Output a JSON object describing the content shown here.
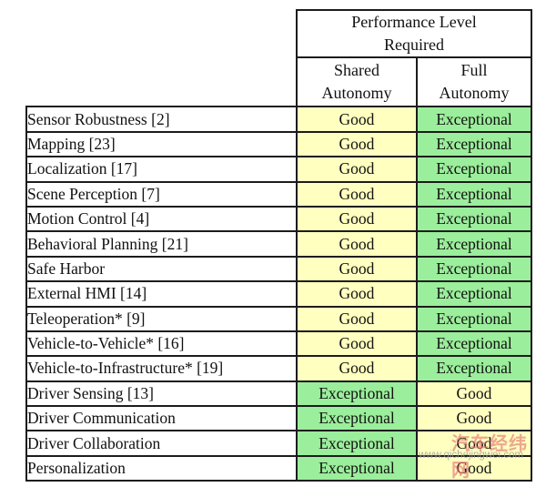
{
  "table": {
    "header": {
      "title_lines": [
        "Performance Level",
        "Required"
      ],
      "columns": [
        {
          "id": "shared",
          "lines": [
            "Shared",
            "Autonomy"
          ]
        },
        {
          "id": "full",
          "lines": [
            "Full",
            "Autonomy"
          ]
        }
      ]
    },
    "value_colors": {
      "Good": "#FFFFC0",
      "Exceptional": "#9BEE9B"
    },
    "border_color": "#1c1c1c",
    "rows": [
      {
        "label": "Sensor Robustness [2]",
        "shared": "Good",
        "full": "Exceptional"
      },
      {
        "label": "Mapping [23]",
        "shared": "Good",
        "full": "Exceptional"
      },
      {
        "label": "Localization [17]",
        "shared": "Good",
        "full": "Exceptional"
      },
      {
        "label": "Scene Perception [7]",
        "shared": "Good",
        "full": "Exceptional"
      },
      {
        "label": "Motion Control [4]",
        "shared": "Good",
        "full": "Exceptional"
      },
      {
        "label": "Behavioral Planning [21]",
        "shared": "Good",
        "full": "Exceptional"
      },
      {
        "label": "Safe Harbor",
        "shared": "Good",
        "full": "Exceptional"
      },
      {
        "label": "External HMI [14]",
        "shared": "Good",
        "full": "Exceptional"
      },
      {
        "label": "Teleoperation* [9]",
        "shared": "Good",
        "full": "Exceptional"
      },
      {
        "label": "Vehicle-to-Vehicle* [16]",
        "shared": "Good",
        "full": "Exceptional"
      },
      {
        "label": "Vehicle-to-Infrastructure* [19]",
        "shared": "Good",
        "full": "Exceptional"
      },
      {
        "label": "Driver Sensing [13]",
        "shared": "Exceptional",
        "full": "Good"
      },
      {
        "label": "Driver Communication",
        "shared": "Exceptional",
        "full": "Good"
      },
      {
        "label": "Driver Collaboration",
        "shared": "Exceptional",
        "full": "Good"
      },
      {
        "label": "Personalization",
        "shared": "Exceptional",
        "full": "Good"
      }
    ]
  },
  "watermark": {
    "site_name": "汽车经纬网",
    "site_url": "www.qichejingwei.com"
  }
}
